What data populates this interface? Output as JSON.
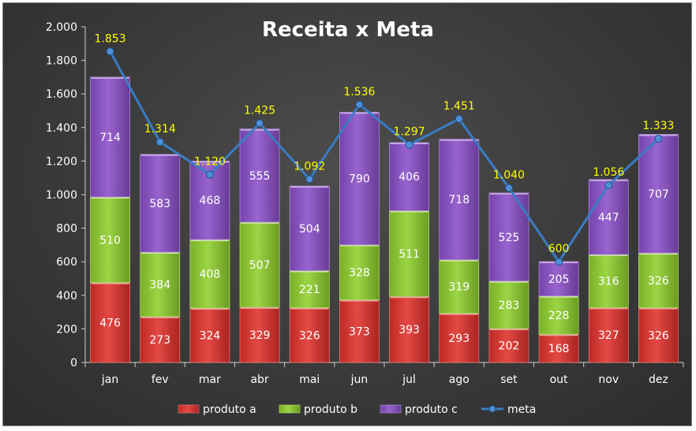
{
  "chart_data": {
    "type": "bar",
    "stacked": true,
    "title": "Receita x Meta",
    "categories": [
      "jan",
      "fev",
      "mar",
      "abr",
      "mai",
      "jun",
      "jul",
      "ago",
      "set",
      "out",
      "nov",
      "dez"
    ],
    "series": [
      {
        "name": "produto a",
        "color": "#e0302a",
        "values": [
          476,
          273,
          324,
          329,
          326,
          373,
          393,
          293,
          202,
          168,
          327,
          326
        ]
      },
      {
        "name": "produto b",
        "color": "#8fcf2c",
        "values": [
          510,
          384,
          408,
          507,
          221,
          328,
          511,
          319,
          283,
          228,
          316,
          326
        ]
      },
      {
        "name": "produto c",
        "color": "#8a4fc9",
        "values": [
          714,
          583,
          468,
          555,
          504,
          790,
          406,
          718,
          525,
          205,
          447,
          707
        ]
      }
    ],
    "line_series": {
      "name": "meta",
      "type": "line",
      "color": "#3a7cc4",
      "values": [
        1853,
        1314,
        1120,
        1425,
        1092,
        1536,
        1297,
        1451,
        1040,
        600,
        1056,
        1333
      ],
      "labels": [
        "1.853",
        "1.314",
        "1.120",
        "1.425",
        "1.092",
        "1.536",
        "1.297",
        "1.451",
        "1.040",
        "600",
        "1.056",
        "1.333"
      ]
    },
    "y_ticks": [
      0,
      200,
      400,
      600,
      800,
      1000,
      1200,
      1400,
      1600,
      1800,
      2000
    ],
    "y_tick_labels": [
      "0",
      "200",
      "400",
      "600",
      "800",
      "1.000",
      "1.200",
      "1.400",
      "1.600",
      "1.800",
      "2.000"
    ],
    "ylim": [
      0,
      2000
    ],
    "xlabel": "",
    "ylabel": "",
    "legend_position": "bottom",
    "grid": false
  }
}
